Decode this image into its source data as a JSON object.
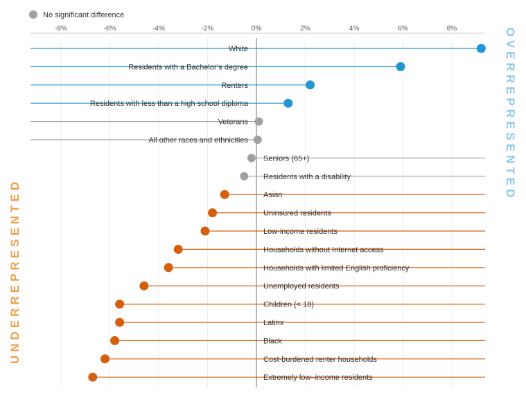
{
  "chart_data": {
    "type": "dot-plot",
    "legend": [
      {
        "label": "No significant difference",
        "color": "#a0a0a0"
      }
    ],
    "side_labels": {
      "over": "OVERREPRESENTED",
      "under": "UNDERREPRESENTED"
    },
    "colors": {
      "over": "#2196d3",
      "under": "#d65f0e",
      "neutral": "#a0a0a0",
      "overtext": "#8fc9e8",
      "undertext": "#f0a04a"
    },
    "xlim": [
      -9.2,
      9.2
    ],
    "xticks": [
      -8,
      -6,
      -4,
      -2,
      0,
      2,
      4,
      6,
      8
    ],
    "xtick_labels": [
      "-8%",
      "-6%",
      "-4%",
      "-2%",
      "0%",
      "2%",
      "4%",
      "6%",
      "8%"
    ],
    "grid": true,
    "series": [
      {
        "category": "White",
        "value": 9.2,
        "group": "over"
      },
      {
        "category": "Residents with a Bachelor’s degree",
        "value": 5.9,
        "group": "over"
      },
      {
        "category": "Renters",
        "value": 2.2,
        "group": "over"
      },
      {
        "category": "Residents with less than a high school diploma",
        "value": 1.3,
        "group": "over"
      },
      {
        "category": "Veterans",
        "value": 0.1,
        "group": "neutral"
      },
      {
        "category": "All other races and ethnicities",
        "value": 0.05,
        "group": "neutral"
      },
      {
        "category": "Seniors (65+)",
        "value": -0.2,
        "group": "neutral"
      },
      {
        "category": "Residents with a disability",
        "value": -0.5,
        "group": "neutral"
      },
      {
        "category": "Asian",
        "value": -1.3,
        "group": "under"
      },
      {
        "category": "Uninsured residents",
        "value": -1.8,
        "group": "under"
      },
      {
        "category": "Low-income residents",
        "value": -2.1,
        "group": "under"
      },
      {
        "category": "Households without Internet access",
        "value": -3.2,
        "group": "under"
      },
      {
        "category": "Households with limited English proficiency",
        "value": -3.6,
        "group": "under"
      },
      {
        "category": "Unemployed residents",
        "value": -4.6,
        "group": "under"
      },
      {
        "category": "Children (< 18)",
        "value": -5.6,
        "group": "under"
      },
      {
        "category": "Latinx",
        "value": -5.6,
        "group": "under"
      },
      {
        "category": "Black",
        "value": -5.8,
        "group": "under"
      },
      {
        "category": "Cost-burdened renter households",
        "value": -6.2,
        "group": "under"
      },
      {
        "category": "Extremely low–income residents",
        "value": -6.7,
        "group": "under"
      }
    ]
  }
}
